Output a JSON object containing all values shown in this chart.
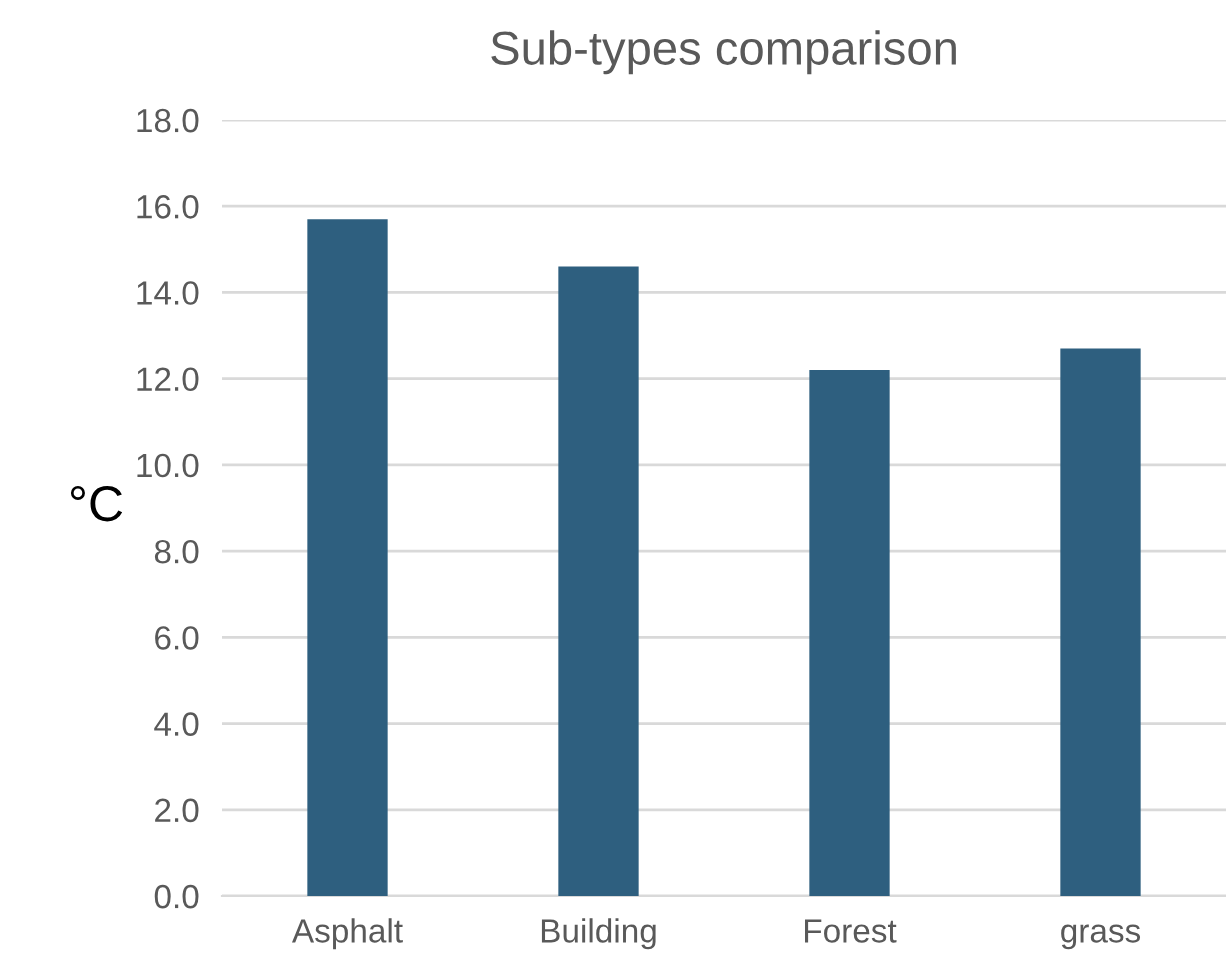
{
  "chart_data": {
    "type": "bar",
    "title": "Sub-types comparison",
    "ylabel": "°C",
    "categories": [
      "Asphalt",
      "Building",
      "Forest",
      "grass"
    ],
    "values": [
      15.7,
      14.6,
      12.2,
      12.7
    ],
    "color": "#2e5f7f",
    "ylim": [
      0,
      18
    ],
    "yticks": [
      {
        "value": 0,
        "label": "0.0"
      },
      {
        "value": 2,
        "label": "2.0"
      },
      {
        "value": 4,
        "label": "4.0"
      },
      {
        "value": 6,
        "label": "6.0"
      },
      {
        "value": 8,
        "label": "8.0"
      },
      {
        "value": 10,
        "label": "10.0"
      },
      {
        "value": 12,
        "label": "12.0"
      },
      {
        "value": 14,
        "label": "14.0"
      },
      {
        "value": 16,
        "label": "16.0"
      },
      {
        "value": 18,
        "label": "18.0"
      }
    ],
    "grid": "y",
    "legend": false
  }
}
